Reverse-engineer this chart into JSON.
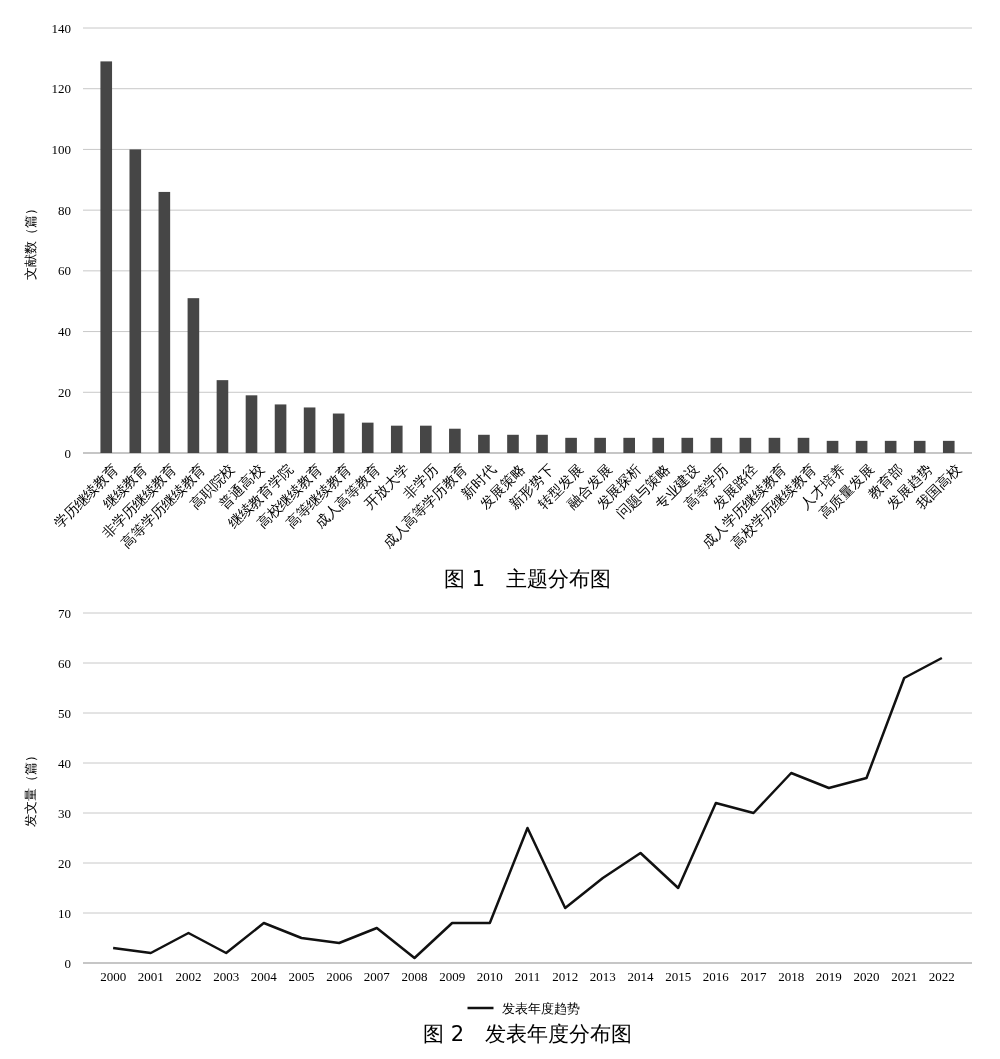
{
  "chart_data": [
    {
      "type": "bar",
      "title": "图 1　主题分布图",
      "ylabel": "文献数（篇）",
      "categories": [
        "学历继续教育",
        "继续教育",
        "非学历继续教育",
        "高等学历继续教育",
        "高职院校",
        "普通高校",
        "继续教育学院",
        "高校继续教育",
        "高等继续教育",
        "成人高等教育",
        "开放大学",
        "非学历",
        "成人高等学历教育",
        "新时代",
        "发展策略",
        "新形势下",
        "转型发展",
        "融合发展",
        "发展探析",
        "问题与策略",
        "专业建设",
        "高等学历",
        "发展路径",
        "成人学历继续教育",
        "高校学历继续教育",
        "人才培养",
        "高质量发展",
        "教育部",
        "发展趋势",
        "我国高校"
      ],
      "values": [
        129,
        100,
        86,
        51,
        24,
        19,
        16,
        15,
        13,
        10,
        9,
        9,
        8,
        6,
        6,
        6,
        5,
        5,
        5,
        5,
        5,
        5,
        5,
        5,
        5,
        4,
        4,
        4,
        4,
        4
      ],
      "color": "#464646",
      "ylim": [
        0,
        140
      ],
      "yticks": [
        0,
        20,
        40,
        60,
        80,
        100,
        120,
        140
      ],
      "grid": "y",
      "legend": false
    },
    {
      "type": "line",
      "title": "图 2　发表年度分布图",
      "ylabel": "发文量（篇）",
      "categories": [
        "2000",
        "2001",
        "2002",
        "2003",
        "2004",
        "2005",
        "2006",
        "2007",
        "2008",
        "2009",
        "2010",
        "2011",
        "2012",
        "2013",
        "2014",
        "2015",
        "2016",
        "2017",
        "2018",
        "2019",
        "2020",
        "2021",
        "2022"
      ],
      "series": [
        {
          "name": "发表年度趋势",
          "color": "#111111",
          "values": [
            3,
            2,
            6,
            2,
            8,
            5,
            4,
            7,
            1,
            8,
            8,
            27,
            11,
            17,
            22,
            15,
            32,
            30,
            38,
            35,
            37,
            57,
            61
          ]
        }
      ],
      "ylim": [
        0,
        70
      ],
      "yticks": [
        0,
        10,
        20,
        30,
        40,
        50,
        60,
        70
      ],
      "grid": "y",
      "legend": "bottom",
      "marker": "none",
      "line_style": "solid"
    }
  ]
}
